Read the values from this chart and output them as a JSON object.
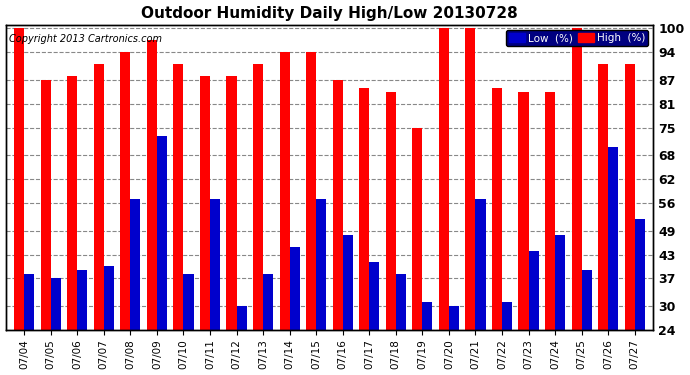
{
  "title": "Outdoor Humidity Daily High/Low 20130728",
  "copyright": "Copyright 2013 Cartronics.com",
  "categories": [
    "07/04",
    "07/05",
    "07/06",
    "07/07",
    "07/08",
    "07/09",
    "07/10",
    "07/11",
    "07/12",
    "07/13",
    "07/14",
    "07/15",
    "07/16",
    "07/17",
    "07/18",
    "07/19",
    "07/20",
    "07/21",
    "07/22",
    "07/23",
    "07/24",
    "07/25",
    "07/26",
    "07/27"
  ],
  "high_values": [
    100,
    87,
    88,
    91,
    94,
    97,
    91,
    88,
    88,
    91,
    94,
    94,
    87,
    85,
    84,
    75,
    100,
    100,
    85,
    84,
    84,
    100,
    91,
    91
  ],
  "low_values": [
    38,
    37,
    39,
    40,
    57,
    73,
    38,
    57,
    30,
    38,
    45,
    57,
    48,
    41,
    38,
    31,
    30,
    57,
    31,
    44,
    48,
    39,
    70,
    52
  ],
  "high_color": "#FF0000",
  "low_color": "#0000CC",
  "bg_color": "#FFFFFF",
  "plot_bg_color": "#FFFFFF",
  "grid_color": "#888888",
  "ylim_min": 24,
  "ylim_max": 101,
  "yticks": [
    24,
    30,
    37,
    43,
    49,
    56,
    62,
    68,
    75,
    81,
    87,
    94,
    100
  ],
  "bar_width": 0.38,
  "legend_low_label": "Low  (%)",
  "legend_high_label": "High  (%)"
}
